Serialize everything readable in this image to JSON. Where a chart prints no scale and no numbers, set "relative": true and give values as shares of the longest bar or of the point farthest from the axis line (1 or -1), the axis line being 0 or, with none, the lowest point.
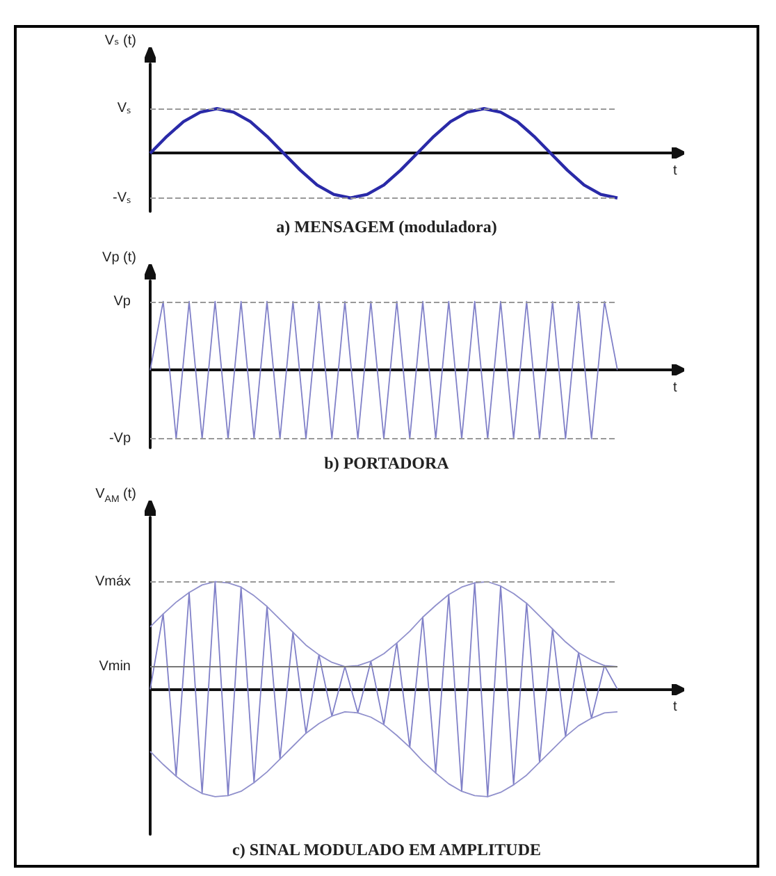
{
  "chart_data": [
    {
      "type": "line",
      "relative": true,
      "title": "a) MENSAGEM (moduladora)",
      "xlabel": "t",
      "ylabel": "Vₛ (t)",
      "marker": "none",
      "categories": [
        null,
        null,
        null,
        null,
        null,
        null,
        null,
        null,
        null,
        null,
        null,
        null,
        null,
        null,
        null,
        null,
        null,
        null,
        null,
        null,
        null,
        null,
        null,
        null,
        null,
        null,
        null,
        null,
        null
      ],
      "series": [
        {
          "color": "#2a2aa8",
          "values": [
            0,
            0.38,
            0.71,
            0.92,
            1,
            0.92,
            0.71,
            0.38,
            0,
            -0.38,
            -0.71,
            -0.92,
            -1,
            -0.92,
            -0.71,
            -0.38,
            0,
            0.38,
            0.71,
            0.92,
            1,
            0.92,
            0.71,
            0.38,
            0,
            -0.38,
            -0.71,
            -0.92,
            -1
          ]
        }
      ],
      "ref_lines": [
        {
          "axis": "y",
          "value": 1,
          "label": "Vₛ",
          "color": "#999999",
          "line_style": "dashed"
        },
        {
          "axis": "y",
          "value": -1,
          "label": "-Vₛ",
          "color": "#999999",
          "line_style": "dashed"
        }
      ]
    },
    {
      "type": "line",
      "relative": true,
      "title": "b) PORTADORA",
      "xlabel": "t",
      "ylabel": "Vp (t)",
      "marker": "none",
      "categories": [
        null,
        null,
        null,
        null,
        null,
        null,
        null,
        null,
        null,
        null,
        null,
        null,
        null,
        null,
        null,
        null,
        null,
        null,
        null,
        null,
        null,
        null,
        null,
        null,
        null,
        null,
        null,
        null,
        null,
        null,
        null,
        null,
        null,
        null,
        null,
        null,
        null
      ],
      "series": [
        {
          "color": "#8080c8",
          "values": [
            0,
            1,
            -1,
            1,
            -1,
            1,
            -1,
            1,
            -1,
            1,
            -1,
            1,
            -1,
            1,
            -1,
            1,
            -1,
            1,
            -1,
            1,
            -1,
            1,
            -1,
            1,
            -1,
            1,
            -1,
            1,
            -1,
            1,
            -1,
            1,
            -1,
            1,
            -1,
            1,
            0
          ]
        }
      ],
      "ref_lines": [
        {
          "axis": "y",
          "value": 1,
          "label": "Vp",
          "color": "#999999",
          "line_style": "dashed"
        },
        {
          "axis": "y",
          "value": -1,
          "label": "-Vp",
          "color": "#999999",
          "line_style": "dashed"
        }
      ]
    },
    {
      "type": "line",
      "relative": true,
      "title": "c) SINAL MODULADO EM AMPLITUDE",
      "xlabel": "t",
      "ylabel": "V$_{AM}$ (t)",
      "marker": "none",
      "categories": [
        null,
        null,
        null,
        null,
        null,
        null,
        null,
        null,
        null,
        null,
        null,
        null,
        null,
        null,
        null,
        null,
        null,
        null,
        null,
        null,
        null,
        null,
        null,
        null,
        null,
        null,
        null,
        null,
        null,
        null,
        null,
        null,
        null,
        null,
        null,
        null,
        null
      ],
      "series": [
        {
          "color": "#8080c8",
          "values": [
            0,
            0.7,
            -0.81,
            0.9,
            -0.97,
            1,
            -0.99,
            0.95,
            -0.87,
            0.77,
            -0.65,
            0.53,
            -0.41,
            0.32,
            -0.25,
            0.21,
            -0.22,
            0.26,
            -0.33,
            0.43,
            -0.54,
            0.67,
            -0.78,
            0.88,
            -0.95,
            0.99,
            -1,
            0.96,
            -0.89,
            0.8,
            -0.68,
            0.56,
            -0.44,
            0.34,
            -0.27,
            0.22,
            0
          ]
        },
        {
          "color": "#9090cc",
          "values": [
            0.58,
            0.7,
            0.81,
            0.9,
            0.97,
            1,
            0.99,
            0.95,
            0.87,
            0.77,
            0.65,
            0.53,
            0.41,
            0.32,
            0.25,
            0.21,
            0.22,
            0.26,
            0.33,
            0.43,
            0.54,
            0.67,
            0.78,
            0.88,
            0.95,
            0.99,
            1,
            0.96,
            0.89,
            0.8,
            0.68,
            0.56,
            0.44,
            0.34,
            0.27,
            0.22,
            0.21
          ]
        },
        {
          "color": "#9090cc",
          "values": [
            -0.58,
            -0.7,
            -0.81,
            -0.9,
            -0.97,
            -1,
            -0.99,
            -0.95,
            -0.87,
            -0.77,
            -0.65,
            -0.53,
            -0.41,
            -0.32,
            -0.25,
            -0.21,
            -0.22,
            -0.26,
            -0.33,
            -0.43,
            -0.54,
            -0.67,
            -0.78,
            -0.88,
            -0.95,
            -0.99,
            -1,
            -0.96,
            -0.89,
            -0.8,
            -0.68,
            -0.56,
            -0.44,
            -0.34,
            -0.27,
            -0.22,
            -0.21
          ]
        }
      ],
      "ref_lines": [
        {
          "axis": "y",
          "value": 1,
          "label": "Vmáx",
          "color": "#999999",
          "line_style": "dashed"
        },
        {
          "axis": "y",
          "value": 0.21,
          "label": "Vmin",
          "color": "#777777",
          "line_style": "solid"
        }
      ]
    }
  ]
}
